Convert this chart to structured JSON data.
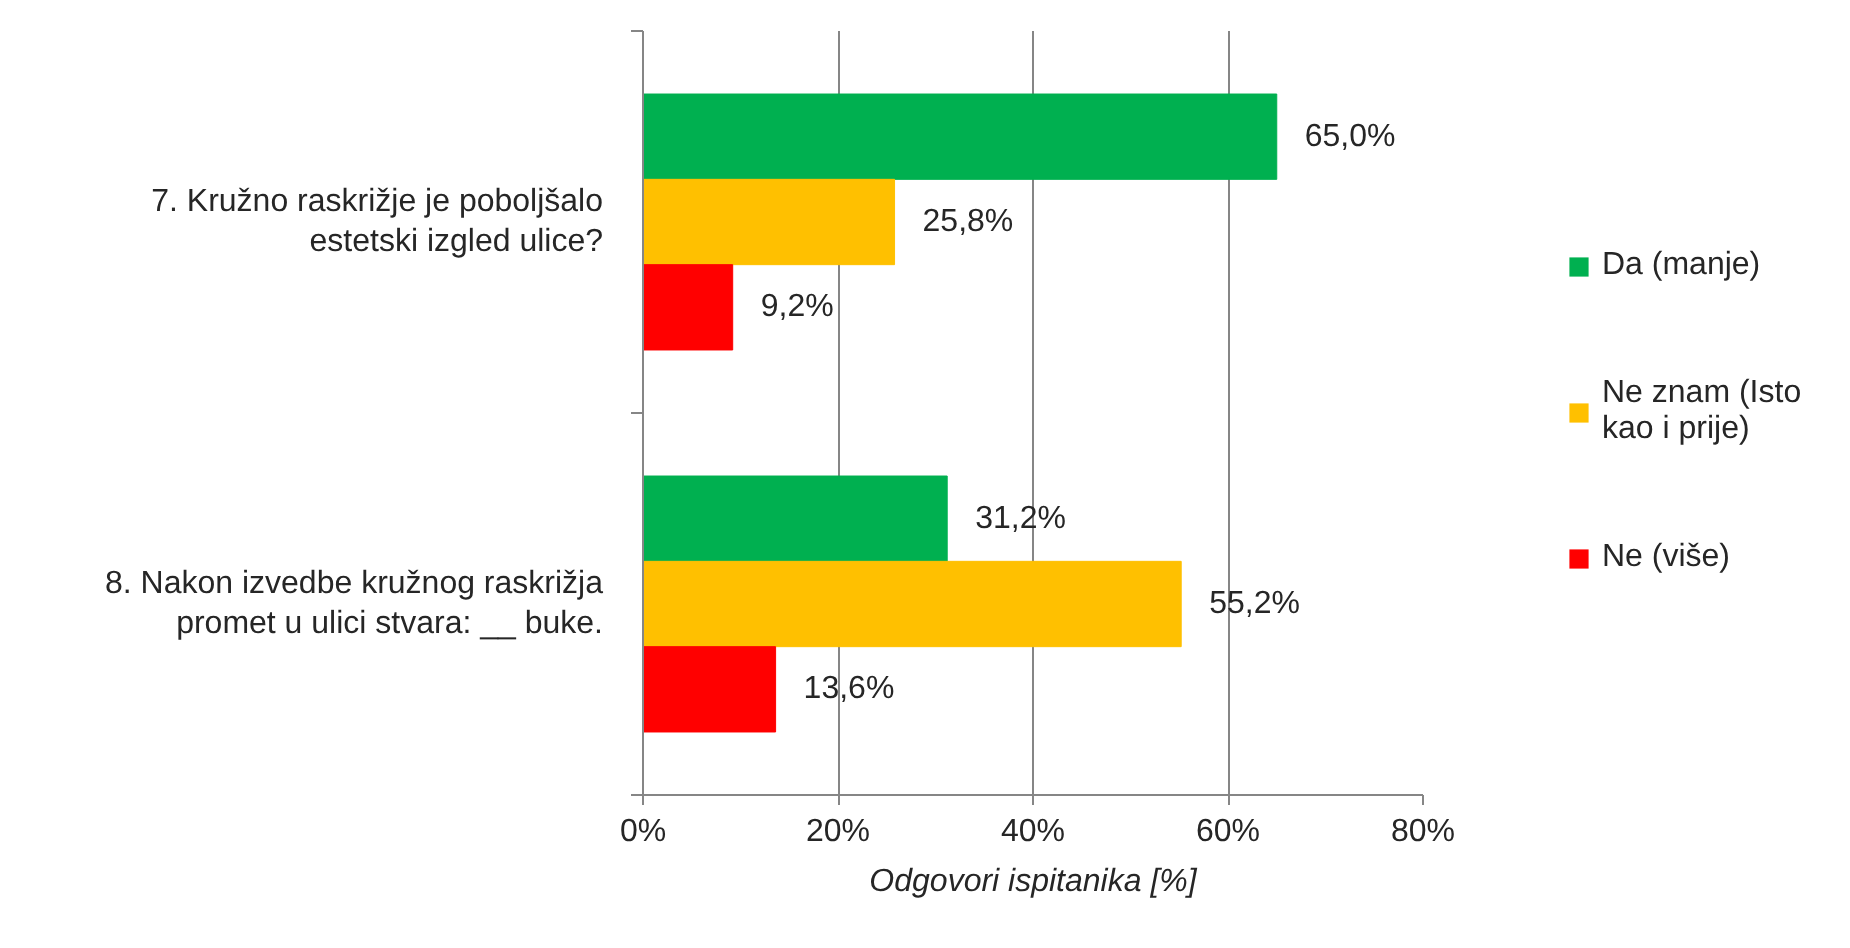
{
  "chart_data": {
    "type": "bar",
    "orientation": "horizontal",
    "categories": [
      "7. Kružno raskrižje je poboljšalo estetski izgled ulice?",
      "8. Nakon izvedbe kružnog raskrižja promet u ulici stvara: __ buke."
    ],
    "series": [
      {
        "name": "Da (manje)",
        "color": "#00b050",
        "values": [
          65.0,
          31.2
        ],
        "value_labels": [
          "65,0%",
          "31,2%"
        ]
      },
      {
        "name": "Ne znam (Isto kao i prije)",
        "color": "#ffc000",
        "values": [
          25.8,
          55.2
        ],
        "value_labels": [
          "25,8%",
          "55,2%"
        ]
      },
      {
        "name": "Ne (više)",
        "color": "#ff0000",
        "values": [
          9.2,
          13.6
        ],
        "value_labels": [
          "9,2%",
          "13,6%"
        ]
      }
    ],
    "xlim": [
      0,
      80
    ],
    "xticks": [
      {
        "value": 0,
        "label": "0%"
      },
      {
        "value": 20,
        "label": "20%"
      },
      {
        "value": 40,
        "label": "40%"
      },
      {
        "value": 60,
        "label": "60%"
      },
      {
        "value": 80,
        "label": "80%"
      }
    ],
    "xlabel": "Odgovori ispitanika [%]",
    "grid": "x",
    "legend": "right"
  }
}
